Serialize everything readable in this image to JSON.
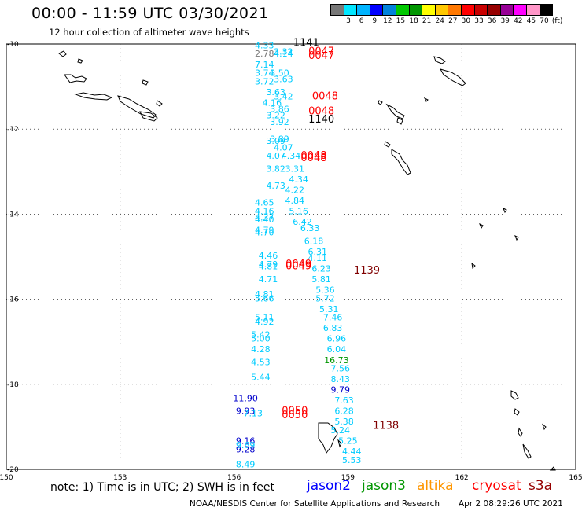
{
  "header": {
    "title": "00:00 - 11:59 UTC 03/30/2021",
    "subtitle": "12 hour collection of altimeter wave heights"
  },
  "legend": {
    "colors": [
      "#777777",
      "#00e6ff",
      "#00b4ff",
      "#0000ff",
      "#0082dc",
      "#00c800",
      "#009600",
      "#ffff00",
      "#ffc800",
      "#ff7800",
      "#ff0000",
      "#c80000",
      "#960000",
      "#960096",
      "#ff00ff",
      "#ff96c8",
      "#000000"
    ],
    "labels": [
      "3",
      "6",
      "9",
      "12",
      "15",
      "18",
      "21",
      "24",
      "27",
      "30",
      "33",
      "36",
      "39",
      "42",
      "45",
      "70",
      "(ft)"
    ]
  },
  "axes": {
    "lat_labels": [
      "-10",
      "-12",
      "-14",
      "-16",
      "-18",
      "-20"
    ],
    "lon_labels": [
      "150",
      "153",
      "156",
      "159",
      "162",
      "165"
    ]
  },
  "map": {
    "map_type": "Altimeter significant wave height track map",
    "projection": "equirectangular",
    "lon_range": [
      150,
      165
    ],
    "lat_range": [
      -20,
      -10
    ],
    "grid": true,
    "readings": [
      {
        "lon": 156.8,
        "lat": -10.1,
        "value": "4.33",
        "color": "#00ccff"
      },
      {
        "lon": 156.8,
        "lat": -10.3,
        "value": "2.78",
        "color": "#777777"
      },
      {
        "lon": 157.3,
        "lat": -10.25,
        "value": "3.32",
        "color": "#00ccff"
      },
      {
        "lon": 157.3,
        "lat": -10.3,
        "value": "4.14",
        "color": "#00ccff"
      },
      {
        "lon": 156.8,
        "lat": -10.55,
        "value": "7.14",
        "color": "#00ccff"
      },
      {
        "lon": 156.8,
        "lat": -10.75,
        "value": "3.74",
        "color": "#00ccff"
      },
      {
        "lon": 157.2,
        "lat": -10.75,
        "value": "3.50",
        "color": "#00ccff"
      },
      {
        "lon": 157.3,
        "lat": -10.9,
        "value": "3.63",
        "color": "#00ccff"
      },
      {
        "lon": 156.8,
        "lat": -10.95,
        "value": "3.72",
        "color": "#00ccff"
      },
      {
        "lon": 157.1,
        "lat": -11.2,
        "value": "3.63",
        "color": "#00ccff"
      },
      {
        "lon": 157.3,
        "lat": -11.3,
        "value": "3.42",
        "color": "#00ccff"
      },
      {
        "lon": 157.0,
        "lat": -11.45,
        "value": "4.16",
        "color": "#00ccff"
      },
      {
        "lon": 157.2,
        "lat": -11.6,
        "value": "3.86",
        "color": "#00ccff"
      },
      {
        "lon": 157.1,
        "lat": -11.75,
        "value": "3.22",
        "color": "#00ccff"
      },
      {
        "lon": 157.2,
        "lat": -11.9,
        "value": "3.92",
        "color": "#00ccff"
      },
      {
        "lon": 157.2,
        "lat": -12.3,
        "value": "3.89",
        "color": "#00ccff"
      },
      {
        "lon": 157.1,
        "lat": -12.35,
        "value": "3.09",
        "color": "#00ccff"
      },
      {
        "lon": 157.3,
        "lat": -12.5,
        "value": "4.07",
        "color": "#00ccff"
      },
      {
        "lon": 157.1,
        "lat": -12.7,
        "value": "4.07",
        "color": "#00ccff"
      },
      {
        "lon": 157.5,
        "lat": -12.7,
        "value": "4.34",
        "color": "#00ccff"
      },
      {
        "lon": 157.1,
        "lat": -13.0,
        "value": "3.82",
        "color": "#00ccff"
      },
      {
        "lon": 157.6,
        "lat": -13.0,
        "value": "3.31",
        "color": "#00ccff"
      },
      {
        "lon": 157.7,
        "lat": -13.25,
        "value": "4.34",
        "color": "#00ccff"
      },
      {
        "lon": 157.1,
        "lat": -13.4,
        "value": "4.73",
        "color": "#00ccff"
      },
      {
        "lon": 157.6,
        "lat": -13.5,
        "value": "4.22",
        "color": "#00ccff"
      },
      {
        "lon": 156.8,
        "lat": -13.8,
        "value": "4.65",
        "color": "#00ccff"
      },
      {
        "lon": 157.6,
        "lat": -13.75,
        "value": "4.84",
        "color": "#00ccff"
      },
      {
        "lon": 156.8,
        "lat": -14.0,
        "value": "4.16",
        "color": "#00ccff"
      },
      {
        "lon": 157.7,
        "lat": -14.0,
        "value": "5.16",
        "color": "#00ccff"
      },
      {
        "lon": 156.8,
        "lat": -14.15,
        "value": "4.37",
        "color": "#00ccff"
      },
      {
        "lon": 156.8,
        "lat": -14.2,
        "value": "4.40",
        "color": "#00ccff"
      },
      {
        "lon": 157.8,
        "lat": -14.25,
        "value": "6.42",
        "color": "#00ccff"
      },
      {
        "lon": 156.8,
        "lat": -14.45,
        "value": "4.79",
        "color": "#00ccff"
      },
      {
        "lon": 156.8,
        "lat": -14.5,
        "value": "4.70",
        "color": "#00ccff"
      },
      {
        "lon": 158.0,
        "lat": -14.4,
        "value": "6.33",
        "color": "#00ccff"
      },
      {
        "lon": 158.1,
        "lat": -14.7,
        "value": "6.18",
        "color": "#00ccff"
      },
      {
        "lon": 158.2,
        "lat": -14.95,
        "value": "6.31",
        "color": "#00ccff"
      },
      {
        "lon": 156.9,
        "lat": -15.05,
        "value": "4.46",
        "color": "#00ccff"
      },
      {
        "lon": 158.2,
        "lat": -15.1,
        "value": "4.11",
        "color": "#00ccff"
      },
      {
        "lon": 156.9,
        "lat": -15.25,
        "value": "4.79",
        "color": "#00ccff"
      },
      {
        "lon": 156.9,
        "lat": -15.3,
        "value": "4.81",
        "color": "#00ccff"
      },
      {
        "lon": 158.3,
        "lat": -15.35,
        "value": "6.23",
        "color": "#00ccff"
      },
      {
        "lon": 156.9,
        "lat": -15.6,
        "value": "4.71",
        "color": "#00ccff"
      },
      {
        "lon": 158.3,
        "lat": -15.6,
        "value": "5.81",
        "color": "#00ccff"
      },
      {
        "lon": 158.4,
        "lat": -15.85,
        "value": "5.36",
        "color": "#00ccff"
      },
      {
        "lon": 156.8,
        "lat": -15.95,
        "value": "4.81",
        "color": "#00ccff"
      },
      {
        "lon": 156.8,
        "lat": -16.05,
        "value": "5.66",
        "color": "#00ccff"
      },
      {
        "lon": 158.4,
        "lat": -16.05,
        "value": "5.72",
        "color": "#00ccff"
      },
      {
        "lon": 158.5,
        "lat": -16.3,
        "value": "5.31",
        "color": "#00ccff"
      },
      {
        "lon": 156.8,
        "lat": -16.5,
        "value": "5.11",
        "color": "#00ccff"
      },
      {
        "lon": 158.6,
        "lat": -16.5,
        "value": "7.46",
        "color": "#00ccff"
      },
      {
        "lon": 156.8,
        "lat": -16.6,
        "value": "4.92",
        "color": "#00ccff"
      },
      {
        "lon": 158.6,
        "lat": -16.75,
        "value": "6.83",
        "color": "#00ccff"
      },
      {
        "lon": 156.7,
        "lat": -16.9,
        "value": "5.42",
        "color": "#00ccff"
      },
      {
        "lon": 156.7,
        "lat": -17.0,
        "value": "5.00",
        "color": "#00ccff"
      },
      {
        "lon": 158.7,
        "lat": -17.0,
        "value": "6.96",
        "color": "#00ccff"
      },
      {
        "lon": 156.7,
        "lat": -17.25,
        "value": "4.28",
        "color": "#00ccff"
      },
      {
        "lon": 158.7,
        "lat": -17.25,
        "value": "6.04",
        "color": "#00ccff"
      },
      {
        "lon": 158.7,
        "lat": -17.5,
        "value": "16.73",
        "color": "#009600"
      },
      {
        "lon": 156.7,
        "lat": -17.55,
        "value": "4.53",
        "color": "#00ccff"
      },
      {
        "lon": 158.8,
        "lat": -17.7,
        "value": "7.56",
        "color": "#00ccff"
      },
      {
        "lon": 156.7,
        "lat": -17.9,
        "value": "5.44",
        "color": "#00ccff"
      },
      {
        "lon": 158.8,
        "lat": -17.95,
        "value": "8.43",
        "color": "#00ccff"
      },
      {
        "lon": 158.8,
        "lat": -18.2,
        "value": "9.79",
        "color": "#0000cc"
      },
      {
        "lon": 156.3,
        "lat": -18.4,
        "value": "11.90",
        "color": "#0000cc"
      },
      {
        "lon": 158.9,
        "lat": -18.45,
        "value": "7.63",
        "color": "#00ccff"
      },
      {
        "lon": 156.3,
        "lat": -18.7,
        "value": "9.93",
        "color": "#0000cc"
      },
      {
        "lon": 156.5,
        "lat": -18.75,
        "value": "7.13",
        "color": "#00ccff"
      },
      {
        "lon": 158.9,
        "lat": -18.7,
        "value": "6.28",
        "color": "#00ccff"
      },
      {
        "lon": 158.9,
        "lat": -18.95,
        "value": "5.38",
        "color": "#00ccff"
      },
      {
        "lon": 158.8,
        "lat": -19.15,
        "value": "5.24",
        "color": "#00ccff"
      },
      {
        "lon": 159.0,
        "lat": -19.4,
        "value": "5.25",
        "color": "#00ccff"
      },
      {
        "lon": 156.3,
        "lat": -19.4,
        "value": "9.16",
        "color": "#0000cc"
      },
      {
        "lon": 156.3,
        "lat": -19.5,
        "value": "9.69",
        "color": "#00ccff"
      },
      {
        "lon": 156.3,
        "lat": -19.6,
        "value": "9.28",
        "color": "#0000cc"
      },
      {
        "lon": 159.1,
        "lat": -19.65,
        "value": "4.44",
        "color": "#00ccff"
      },
      {
        "lon": 159.1,
        "lat": -19.85,
        "value": "5.53",
        "color": "#00ccff"
      },
      {
        "lon": 156.3,
        "lat": -19.95,
        "value": "8.49",
        "color": "#00ccff"
      }
    ],
    "times": [
      {
        "lon": 157.9,
        "lat": -10.05,
        "value": "1141",
        "color": "#000000"
      },
      {
        "lon": 158.3,
        "lat": -10.25,
        "value": "0047",
        "color": "#ff0000"
      },
      {
        "lon": 158.3,
        "lat": -10.35,
        "value": "0047",
        "color": "#ff0000"
      },
      {
        "lon": 158.4,
        "lat": -11.3,
        "value": "0048",
        "color": "#ff0000"
      },
      {
        "lon": 158.3,
        "lat": -11.65,
        "value": "0048",
        "color": "#ff0000"
      },
      {
        "lon": 158.3,
        "lat": -11.85,
        "value": "1140",
        "color": "#000000"
      },
      {
        "lon": 158.1,
        "lat": -12.7,
        "value": "0048",
        "color": "#ff0000"
      },
      {
        "lon": 158.1,
        "lat": -12.75,
        "value": "0048",
        "color": "#ff0000"
      },
      {
        "lon": 157.7,
        "lat": -15.25,
        "value": "0049",
        "color": "#ff0000"
      },
      {
        "lon": 157.7,
        "lat": -15.3,
        "value": "0049",
        "color": "#ff0000"
      },
      {
        "lon": 159.5,
        "lat": -15.4,
        "value": "1139",
        "color": "#800000"
      },
      {
        "lon": 157.6,
        "lat": -18.7,
        "value": "0050",
        "color": "#ff0000"
      },
      {
        "lon": 157.6,
        "lat": -18.8,
        "value": "0050",
        "color": "#ff0000"
      },
      {
        "lon": 160.0,
        "lat": -19.05,
        "value": "1138",
        "color": "#800000"
      }
    ]
  },
  "footer": {
    "note": "note:  1) Time is in UTC;  2) SWH is in feet",
    "satellites": [
      {
        "name": "jason2",
        "color": "#0000ff"
      },
      {
        "name": "jason3",
        "color": "#009600"
      },
      {
        "name": "altika",
        "color": "#ff9600"
      },
      {
        "name": "cryosat",
        "color": "#ff0000"
      },
      {
        "name": "s3a",
        "color": "#960000"
      }
    ],
    "credit": "NOAA/NESDIS Center for Satellite Applications and Research",
    "timestamp": "Apr  2 08:29:26 UTC 2021"
  }
}
